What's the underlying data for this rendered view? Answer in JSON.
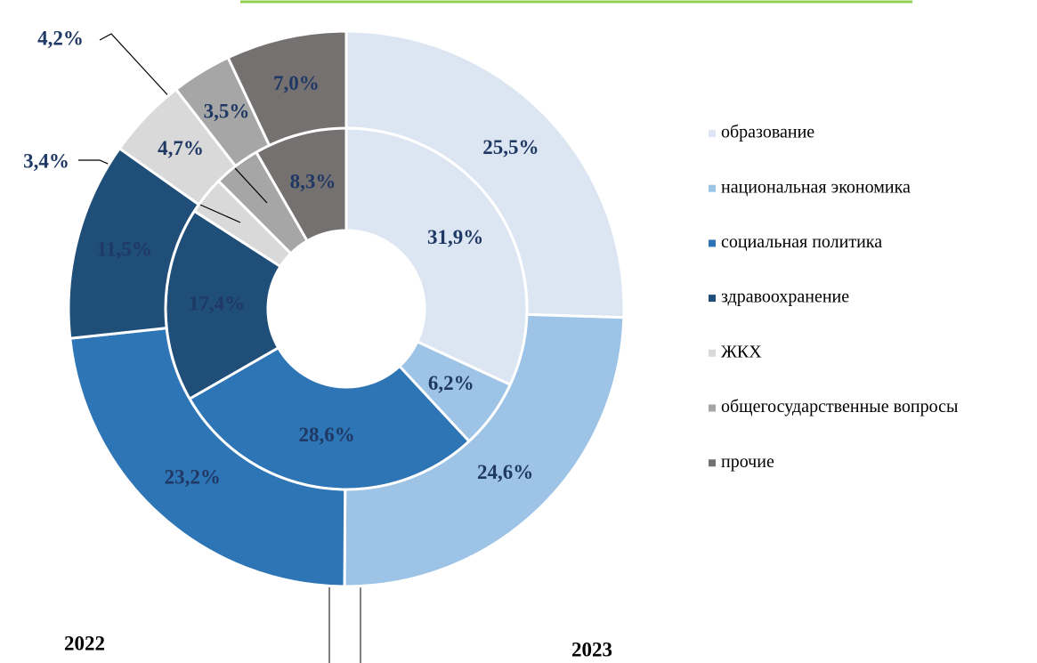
{
  "chart_data": {
    "type": "donut",
    "categories": [
      "образование",
      "национальная экономика",
      "социальная политика",
      "здравоохранение",
      "ЖКХ",
      "общегосударственные вопросы",
      "прочие"
    ],
    "colors": [
      "#dce6f2",
      "#9dc3e6",
      "#2e75b6",
      "#1f4e79",
      "#d9d9d9",
      "#a6a6a6",
      "#767171"
    ],
    "series": [
      {
        "name": "2022",
        "values": [
          31.9,
          6.2,
          28.6,
          17.4,
          3.4,
          4.2,
          8.3
        ],
        "value_labels": [
          "31,9%",
          "6,2%",
          "28,6%",
          "17,4%",
          "3,4%",
          "4,2%",
          "8,3%"
        ]
      },
      {
        "name": "2023",
        "values": [
          25.5,
          24.6,
          23.2,
          11.5,
          4.7,
          3.5,
          7.0
        ],
        "value_labels": [
          "25,5%",
          "24,6%",
          "23,2%",
          "11,5%",
          "4,7%",
          "3,5%",
          "7,0%"
        ]
      }
    ]
  }
}
